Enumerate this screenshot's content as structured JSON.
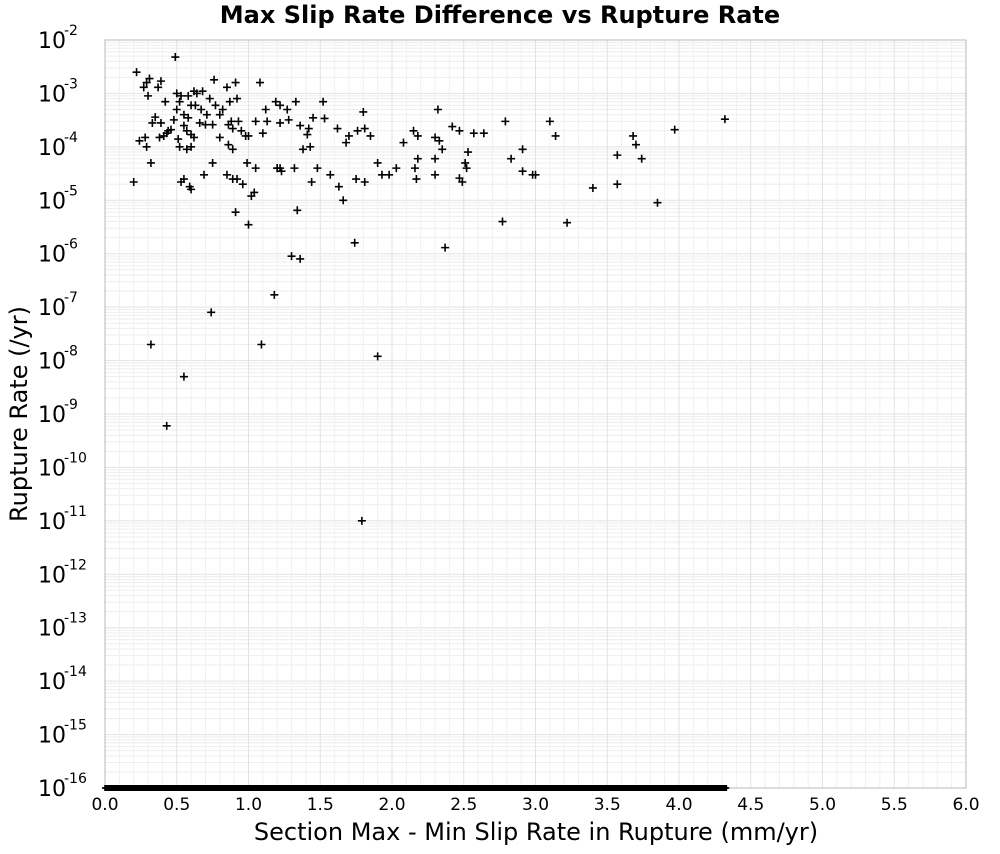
{
  "chart_data": {
    "type": "scatter",
    "title": "Max Slip Rate Difference vs Rupture Rate",
    "xlabel": "Section Max - Min Slip Rate in Rupture (mm/yr)",
    "ylabel": "Rupture Rate (/yr)",
    "xlim": [
      0,
      6
    ],
    "ylim": [
      1e-16,
      0.01
    ],
    "yscale": "log",
    "grid": true,
    "marker": "plus",
    "marker_color": "#000000",
    "x_ticks": [
      "0.0",
      "0.5",
      "1.0",
      "1.5",
      "2.0",
      "2.5",
      "3.0",
      "3.5",
      "4.0",
      "4.5",
      "5.0",
      "5.5",
      "6.0"
    ],
    "y_ticks": [
      {
        "base": "10",
        "exp": "-2"
      },
      {
        "base": "10",
        "exp": "-3"
      },
      {
        "base": "10",
        "exp": "-4"
      },
      {
        "base": "10",
        "exp": "-5"
      },
      {
        "base": "10",
        "exp": "-6"
      },
      {
        "base": "10",
        "exp": "-7"
      },
      {
        "base": "10",
        "exp": "-8"
      },
      {
        "base": "10",
        "exp": "-9"
      },
      {
        "base": "10",
        "exp": "-10"
      },
      {
        "base": "10",
        "exp": "-11"
      },
      {
        "base": "10",
        "exp": "-12"
      },
      {
        "base": "10",
        "exp": "-13"
      },
      {
        "base": "10",
        "exp": "-14"
      },
      {
        "base": "10",
        "exp": "-15"
      },
      {
        "base": "10",
        "exp": "-16"
      }
    ],
    "floor_series": {
      "name": "",
      "y": 1e-16,
      "x_start": 0.0,
      "x_end": 4.33,
      "x_step": 0.005
    },
    "points": [
      [
        0.22,
        0.0025
      ],
      [
        0.27,
        0.0013
      ],
      [
        0.29,
        0.0016
      ],
      [
        0.31,
        0.0019
      ],
      [
        0.3,
        0.0009
      ],
      [
        0.37,
        0.0013
      ],
      [
        0.39,
        0.0017
      ],
      [
        0.42,
        0.0007
      ],
      [
        0.49,
        0.0048
      ],
      [
        0.5,
        0.001
      ],
      [
        0.53,
        0.0009
      ],
      [
        0.58,
        0.0009
      ],
      [
        0.62,
        0.0011
      ],
      [
        0.64,
        0.001
      ],
      [
        0.68,
        0.0011
      ],
      [
        0.76,
        0.0018
      ],
      [
        0.85,
        0.0013
      ],
      [
        0.87,
        0.0007
      ],
      [
        0.91,
        0.0016
      ],
      [
        0.92,
        0.0008
      ],
      [
        1.08,
        0.0016
      ],
      [
        0.73,
        0.0008
      ],
      [
        0.77,
        0.0006
      ],
      [
        0.82,
        0.0005
      ],
      [
        0.5,
        0.0005
      ],
      [
        0.52,
        0.0007
      ],
      [
        0.55,
        0.0004
      ],
      [
        0.58,
        0.00035
      ],
      [
        0.6,
        0.0006
      ],
      [
        0.63,
        0.0006
      ],
      [
        0.67,
        0.0005
      ],
      [
        0.71,
        0.0004
      ],
      [
        0.8,
        0.0004
      ],
      [
        0.88,
        0.0003
      ],
      [
        0.93,
        0.0003
      ],
      [
        1.05,
        0.0003
      ],
      [
        1.12,
        0.0005
      ],
      [
        1.19,
        0.0007
      ],
      [
        1.22,
        0.0006
      ],
      [
        1.27,
        0.0005
      ],
      [
        1.33,
        0.0007
      ],
      [
        1.52,
        0.0007
      ],
      [
        1.8,
        0.00045
      ],
      [
        2.32,
        0.0005
      ],
      [
        1.13,
        0.0003
      ],
      [
        1.22,
        0.00028
      ],
      [
        1.28,
        0.00032
      ],
      [
        1.36,
        0.00025
      ],
      [
        1.42,
        0.00022
      ],
      [
        1.45,
        0.00035
      ],
      [
        1.53,
        0.00034
      ],
      [
        1.62,
        0.00022
      ],
      [
        1.7,
        0.00016
      ],
      [
        1.76,
        0.0002
      ],
      [
        1.81,
        0.00022
      ],
      [
        1.85,
        0.00016
      ],
      [
        2.15,
        0.0002
      ],
      [
        2.3,
        0.00015
      ],
      [
        2.42,
        0.00024
      ],
      [
        2.47,
        0.0002
      ],
      [
        2.57,
        0.00018
      ],
      [
        2.64,
        0.00018
      ],
      [
        2.79,
        0.0003
      ],
      [
        3.1,
        0.0003
      ],
      [
        3.14,
        0.00016
      ],
      [
        3.68,
        0.00016
      ],
      [
        3.97,
        0.00021
      ],
      [
        4.32,
        0.00033
      ],
      [
        0.24,
        0.00013
      ],
      [
        0.28,
        0.00015
      ],
      [
        0.33,
        0.00028
      ],
      [
        0.35,
        0.00036
      ],
      [
        0.39,
        0.00028
      ],
      [
        0.41,
        0.00016
      ],
      [
        0.43,
        0.00018
      ],
      [
        0.44,
        0.0002
      ],
      [
        0.46,
        0.00021
      ],
      [
        0.38,
        0.00015
      ],
      [
        0.48,
        0.00032
      ],
      [
        0.51,
        0.00014
      ],
      [
        0.55,
        0.00025
      ],
      [
        0.57,
        0.0002
      ],
      [
        0.6,
        0.00017
      ],
      [
        0.62,
        0.00015
      ],
      [
        0.66,
        0.00028
      ],
      [
        0.7,
        0.00026
      ],
      [
        0.75,
        0.00026
      ],
      [
        0.8,
        0.00015
      ],
      [
        0.86,
        0.00026
      ],
      [
        0.89,
        0.00022
      ],
      [
        0.95,
        0.0002
      ],
      [
        0.98,
        0.00016
      ],
      [
        1.0,
        0.00016
      ],
      [
        1.1,
        0.00018
      ],
      [
        1.41,
        0.00017
      ],
      [
        1.68,
        0.00012
      ],
      [
        2.08,
        0.00012
      ],
      [
        2.18,
        0.00016
      ],
      [
        2.33,
        0.00013
      ],
      [
        2.35,
        9e-05
      ],
      [
        3.7,
        0.00011
      ],
      [
        0.29,
        0.0001
      ],
      [
        0.52,
        0.0001
      ],
      [
        0.57,
        9e-05
      ],
      [
        0.6,
        0.0001
      ],
      [
        0.86,
        0.00011
      ],
      [
        0.89,
        9e-05
      ],
      [
        1.43,
        0.0001
      ],
      [
        1.38,
        9e-05
      ],
      [
        2.91,
        9e-05
      ],
      [
        3.57,
        7e-05
      ],
      [
        3.74,
        6e-05
      ],
      [
        2.53,
        8e-05
      ],
      [
        2.83,
        6e-05
      ],
      [
        0.32,
        5e-05
      ],
      [
        0.75,
        5e-05
      ],
      [
        0.99,
        5e-05
      ],
      [
        1.05,
        4e-05
      ],
      [
        1.2,
        4e-05
      ],
      [
        1.22,
        4e-05
      ],
      [
        1.32,
        4e-05
      ],
      [
        1.48,
        4e-05
      ],
      [
        1.57,
        3e-05
      ],
      [
        1.9,
        5e-05
      ],
      [
        2.03,
        4e-05
      ],
      [
        2.18,
        6e-05
      ],
      [
        2.16,
        4e-05
      ],
      [
        2.3,
        6e-05
      ],
      [
        2.51,
        5e-05
      ],
      [
        2.91,
        3.5e-05
      ],
      [
        2.98,
        3e-05
      ],
      [
        0.2,
        2.2e-05
      ],
      [
        0.53,
        2.2e-05
      ],
      [
        0.55,
        2.5e-05
      ],
      [
        0.59,
        1.8e-05
      ],
      [
        0.6,
        1.6e-05
      ],
      [
        0.69,
        3e-05
      ],
      [
        0.85,
        3e-05
      ],
      [
        0.89,
        2.5e-05
      ],
      [
        0.92,
        2.5e-05
      ],
      [
        0.96,
        2e-05
      ],
      [
        1.02,
        1.2e-05
      ],
      [
        1.04,
        1.4e-05
      ],
      [
        1.2,
        4e-05
      ],
      [
        1.23,
        3.5e-05
      ],
      [
        1.44,
        2.2e-05
      ],
      [
        1.63,
        1.8e-05
      ],
      [
        1.75,
        2.5e-05
      ],
      [
        1.81,
        2.2e-05
      ],
      [
        1.93,
        3e-05
      ],
      [
        1.98,
        3e-05
      ],
      [
        2.17,
        2.5e-05
      ],
      [
        2.3,
        3e-05
      ],
      [
        2.47,
        2.6e-05
      ],
      [
        2.49,
        2.2e-05
      ],
      [
        2.52,
        4e-05
      ],
      [
        3.0,
        3e-05
      ],
      [
        3.4,
        1.7e-05
      ],
      [
        3.57,
        2e-05
      ],
      [
        3.85,
        9e-06
      ],
      [
        0.91,
        6e-06
      ],
      [
        1.0,
        3.5e-06
      ],
      [
        1.34,
        6.5e-06
      ],
      [
        1.66,
        1e-05
      ],
      [
        2.77,
        4e-06
      ],
      [
        3.22,
        3.8e-06
      ],
      [
        1.3,
        9e-07
      ],
      [
        1.36,
        8e-07
      ],
      [
        1.74,
        1.6e-06
      ],
      [
        2.37,
        1.3e-06
      ],
      [
        1.18,
        1.7e-07
      ],
      [
        0.74,
        8e-08
      ],
      [
        0.32,
        2e-08
      ],
      [
        1.09,
        2e-08
      ],
      [
        1.9,
        1.2e-08
      ],
      [
        0.55,
        5e-09
      ],
      [
        0.43,
        6e-10
      ],
      [
        1.79,
        1e-11
      ]
    ]
  }
}
